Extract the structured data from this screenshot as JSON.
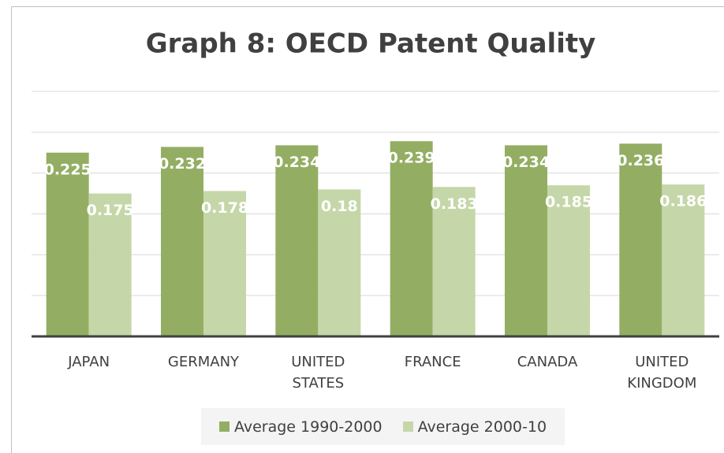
{
  "chart_data": {
    "type": "bar",
    "title": "Graph 8: OECD Patent Quality",
    "categories": [
      "JAPAN",
      "GERMANY",
      "UNITED STATES",
      "FRANCE",
      "CANADA",
      "UNITED KINGDOM"
    ],
    "series": [
      {
        "name": "Average 1990-2000",
        "color": "#93ae63",
        "values": [
          0.225,
          0.232,
          0.234,
          0.239,
          0.234,
          0.236
        ]
      },
      {
        "name": "Average 2000-10",
        "color": "#c5d7a8",
        "values": [
          0.175,
          0.178,
          0.18,
          0.183,
          0.185,
          0.186
        ]
      }
    ],
    "ylim": [
      0,
      0.3
    ],
    "yticks": [
      0,
      0.05,
      0.1,
      0.15,
      0.2,
      0.25,
      0.3
    ],
    "grid": true
  }
}
